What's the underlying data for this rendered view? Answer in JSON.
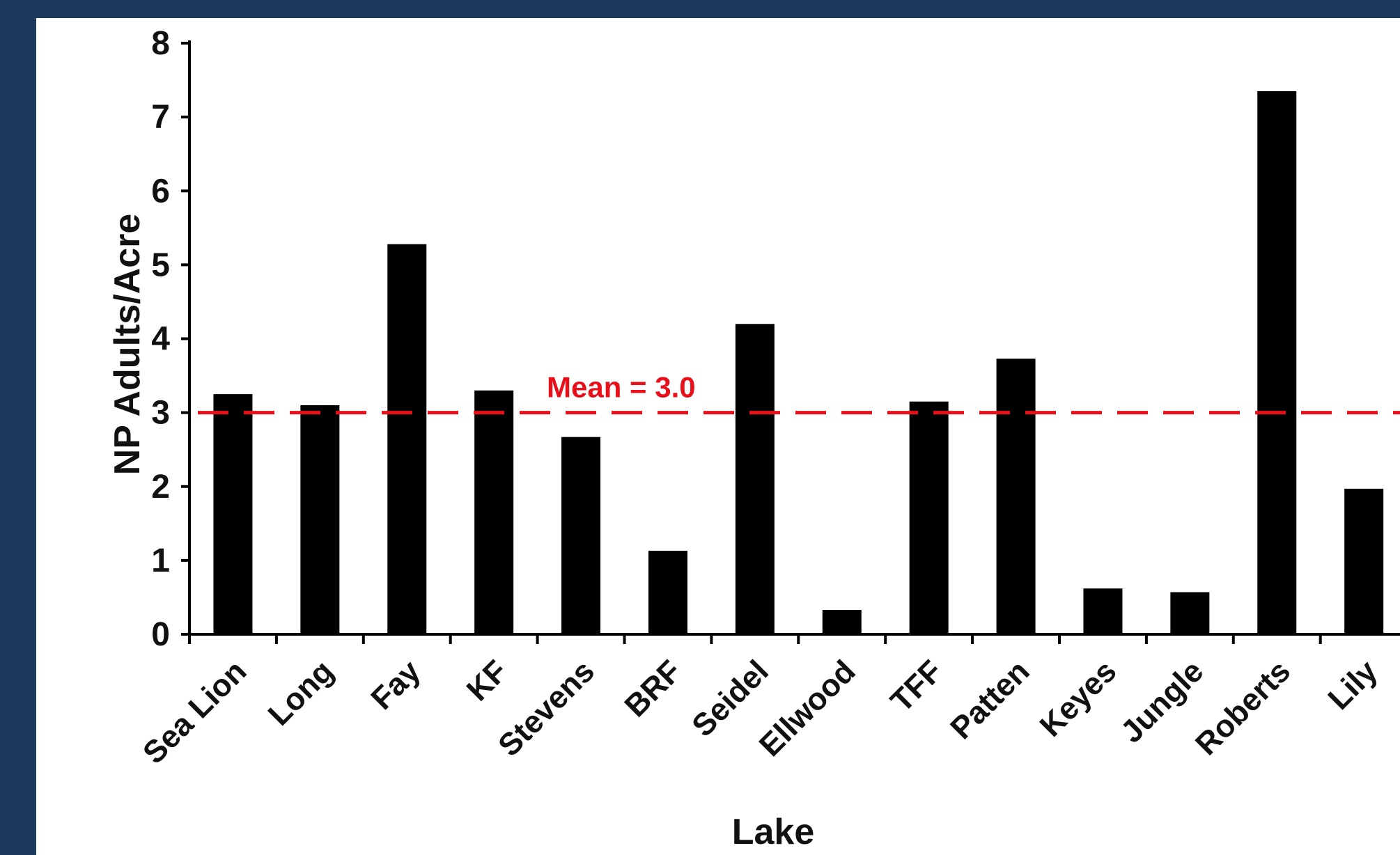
{
  "chart_data": {
    "type": "bar",
    "xlabel": "Lake",
    "ylabel": "NP Adults/Acre",
    "ylim": [
      0,
      8
    ],
    "yticks": [
      0,
      1,
      2,
      3,
      4,
      5,
      6,
      7,
      8
    ],
    "grid": false,
    "categories": [
      "Sea Lion",
      "Long",
      "Fay",
      "KF",
      "Stevens",
      "BRF",
      "Seidel",
      "Ellwood",
      "TFF",
      "Patten",
      "Keyes",
      "Jungle",
      "Roberts",
      "Lily"
    ],
    "values": [
      3.25,
      3.1,
      5.28,
      3.3,
      2.67,
      1.13,
      4.2,
      0.33,
      3.15,
      3.73,
      0.62,
      0.57,
      7.35,
      1.97
    ],
    "mean": {
      "value": 3.0,
      "label": "Mean = 3.0",
      "color": "#e8101a"
    },
    "bar_color": "#000000"
  }
}
